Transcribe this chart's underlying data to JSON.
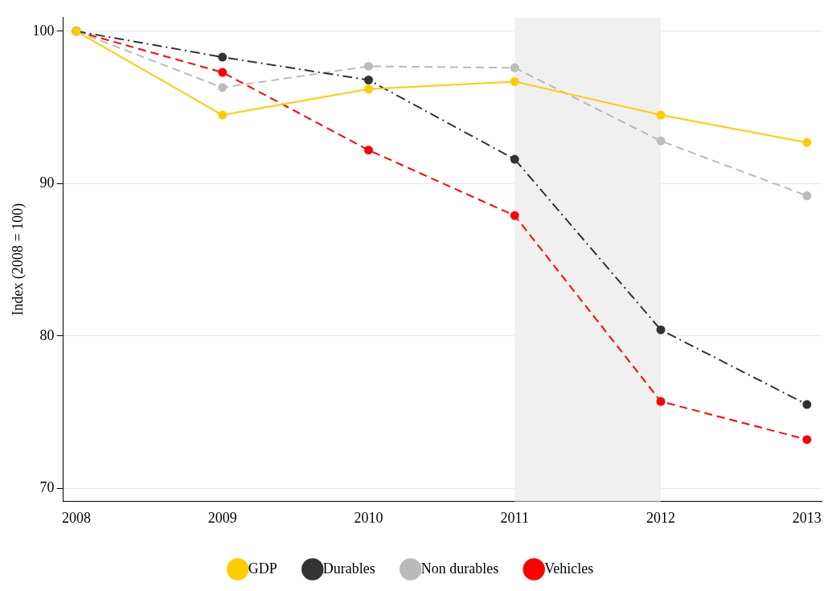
{
  "chart_data": {
    "type": "line",
    "ylabel": "Index (2008 = 100)",
    "x": [
      2008,
      2009,
      2010,
      2011,
      2012,
      2013
    ],
    "xlim": [
      2007.91,
      2013.1
    ],
    "xticks": [
      2008,
      2009,
      2010,
      2011,
      2012,
      2013
    ],
    "ylim": [
      69.15,
      100.9
    ],
    "yticks": [
      70,
      80,
      90,
      100
    ],
    "grid": "y",
    "legend": "bottom",
    "marker": "circle",
    "bands": [
      {
        "axis": "x",
        "from": 2011,
        "to": 2012,
        "color": "#f0f0f0"
      }
    ],
    "series": [
      {
        "name": "GDP",
        "color": "#ffcc00",
        "line_style": "solid",
        "values": [
          100,
          94.5,
          96.2,
          96.7,
          94.5,
          92.7
        ]
      },
      {
        "name": "Durables",
        "color": "#333333",
        "line_style": "dashdot",
        "values": [
          100,
          98.3,
          96.8,
          91.6,
          80.4,
          75.5
        ]
      },
      {
        "name": "Non durables",
        "color": "#bbbbbb",
        "line_style": "dashed",
        "values": [
          100,
          96.3,
          97.7,
          97.6,
          92.8,
          89.2
        ]
      },
      {
        "name": "Vehicles",
        "color": "#ff0000",
        "line_style": "dashed",
        "values": [
          100,
          97.3,
          92.2,
          87.9,
          75.7,
          73.2
        ]
      }
    ]
  }
}
